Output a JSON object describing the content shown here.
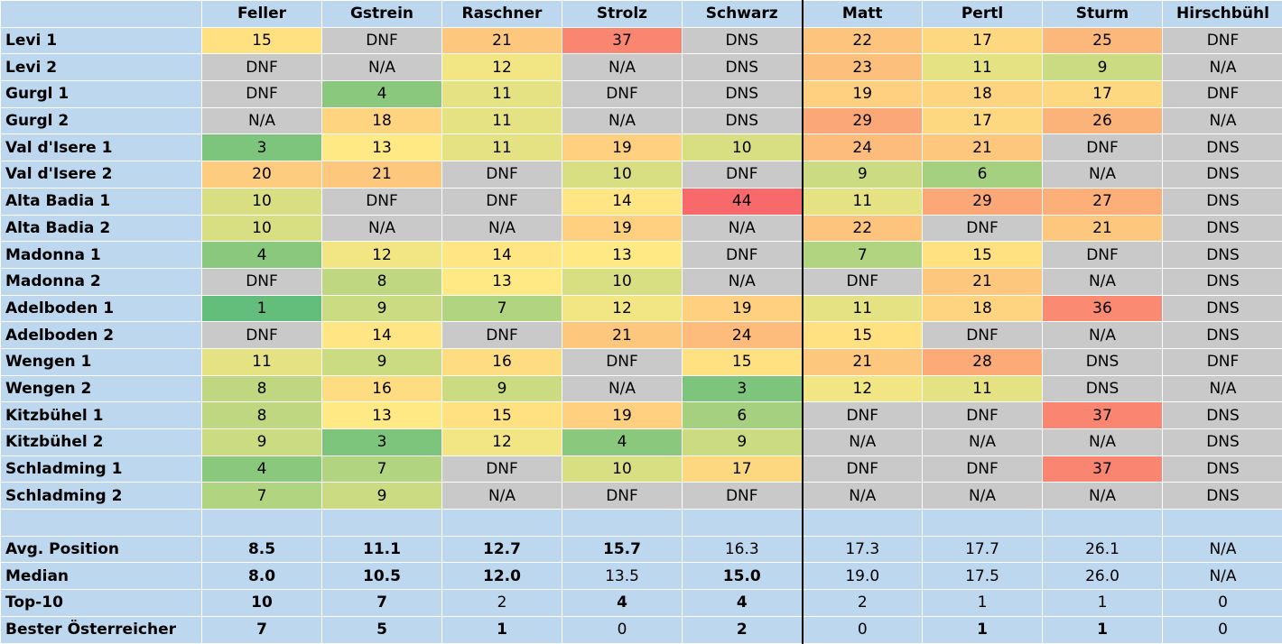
{
  "header": {
    "corner": "",
    "racers": [
      "Feller",
      "Gstrein",
      "Raschner",
      "Strolz",
      "Schwarz",
      "Matt",
      "Pertl",
      "Sturm",
      "Hirschbühl"
    ]
  },
  "races": [
    {
      "label": "Levi 1",
      "values": [
        "15",
        "DNF",
        "21",
        "37",
        "DNS",
        "22",
        "17",
        "25",
        "DNF"
      ]
    },
    {
      "label": "Levi 2",
      "values": [
        "DNF",
        "N/A",
        "12",
        "N/A",
        "DNS",
        "23",
        "11",
        "9",
        "N/A"
      ]
    },
    {
      "label": "Gurgl 1",
      "values": [
        "DNF",
        "4",
        "11",
        "DNF",
        "DNS",
        "19",
        "18",
        "17",
        "DNF"
      ]
    },
    {
      "label": "Gurgl 2",
      "values": [
        "N/A",
        "18",
        "11",
        "N/A",
        "DNS",
        "29",
        "17",
        "26",
        "N/A"
      ]
    },
    {
      "label": "Val d'Isere 1",
      "values": [
        "3",
        "13",
        "11",
        "19",
        "10",
        "24",
        "21",
        "DNF",
        "DNS"
      ]
    },
    {
      "label": "Val d'Isere 2",
      "values": [
        "20",
        "21",
        "DNF",
        "10",
        "DNF",
        "9",
        "6",
        "N/A",
        "DNS"
      ]
    },
    {
      "label": "Alta Badia 1",
      "values": [
        "10",
        "DNF",
        "DNF",
        "14",
        "44",
        "11",
        "29",
        "27",
        "DNS"
      ]
    },
    {
      "label": "Alta Badia 2",
      "values": [
        "10",
        "N/A",
        "N/A",
        "19",
        "N/A",
        "22",
        "DNF",
        "21",
        "DNS"
      ]
    },
    {
      "label": "Madonna 1",
      "values": [
        "4",
        "12",
        "14",
        "13",
        "DNF",
        "7",
        "15",
        "DNF",
        "DNS"
      ]
    },
    {
      "label": "Madonna 2",
      "values": [
        "DNF",
        "8",
        "13",
        "10",
        "N/A",
        "DNF",
        "21",
        "N/A",
        "DNS"
      ]
    },
    {
      "label": "Adelboden 1",
      "values": [
        "1",
        "9",
        "7",
        "12",
        "19",
        "11",
        "18",
        "36",
        "DNS"
      ]
    },
    {
      "label": "Adelboden 2",
      "values": [
        "DNF",
        "14",
        "DNF",
        "21",
        "24",
        "15",
        "DNF",
        "N/A",
        "DNS"
      ]
    },
    {
      "label": "Wengen 1",
      "values": [
        "11",
        "9",
        "16",
        "DNF",
        "15",
        "21",
        "28",
        "DNS",
        "DNF"
      ]
    },
    {
      "label": "Wengen 2",
      "values": [
        "8",
        "16",
        "9",
        "N/A",
        "3",
        "12",
        "11",
        "DNS",
        "N/A"
      ]
    },
    {
      "label": "Kitzbühel 1",
      "values": [
        "8",
        "13",
        "15",
        "19",
        "6",
        "DNF",
        "DNF",
        "37",
        "DNS"
      ]
    },
    {
      "label": "Kitzbühel 2",
      "values": [
        "9",
        "3",
        "12",
        "4",
        "9",
        "N/A",
        "N/A",
        "N/A",
        "DNS"
      ]
    },
    {
      "label": "Schladming 1",
      "values": [
        "4",
        "7",
        "DNF",
        "10",
        "17",
        "DNF",
        "DNF",
        "37",
        "DNS"
      ]
    },
    {
      "label": "Schladming 2",
      "values": [
        "7",
        "9",
        "N/A",
        "DNF",
        "DNF",
        "N/A",
        "N/A",
        "N/A",
        "DNS"
      ]
    }
  ],
  "summary": [
    {
      "label": "Avg. Position",
      "values": [
        "8.5",
        "11.1",
        "12.7",
        "15.7",
        "16.3",
        "17.3",
        "17.7",
        "26.1",
        "N/A"
      ],
      "bold": [
        true,
        true,
        true,
        true,
        false,
        false,
        false,
        false,
        false
      ]
    },
    {
      "label": "Median",
      "values": [
        "8.0",
        "10.5",
        "12.0",
        "13.5",
        "15.0",
        "19.0",
        "17.5",
        "26.0",
        "N/A"
      ],
      "bold": [
        true,
        true,
        true,
        false,
        true,
        false,
        false,
        false,
        false
      ]
    },
    {
      "label": "Top-10",
      "values": [
        "10",
        "7",
        "2",
        "4",
        "4",
        "2",
        "1",
        "1",
        "0"
      ],
      "bold": [
        true,
        true,
        false,
        true,
        true,
        false,
        false,
        false,
        false
      ]
    },
    {
      "label": "Bester Österreicher",
      "values": [
        "7",
        "5",
        "1",
        "0",
        "2",
        "0",
        "1",
        "1",
        "0"
      ],
      "bold": [
        true,
        true,
        true,
        false,
        true,
        false,
        true,
        true,
        false
      ]
    }
  ],
  "colors": {
    "header_bg": "#bdd7ee",
    "missing_bg": "#c9c9c9",
    "scale": {
      "best": "#63be7b",
      "mid": "#ffe984",
      "worst": "#f8696b"
    },
    "separator": "#000000"
  }
}
